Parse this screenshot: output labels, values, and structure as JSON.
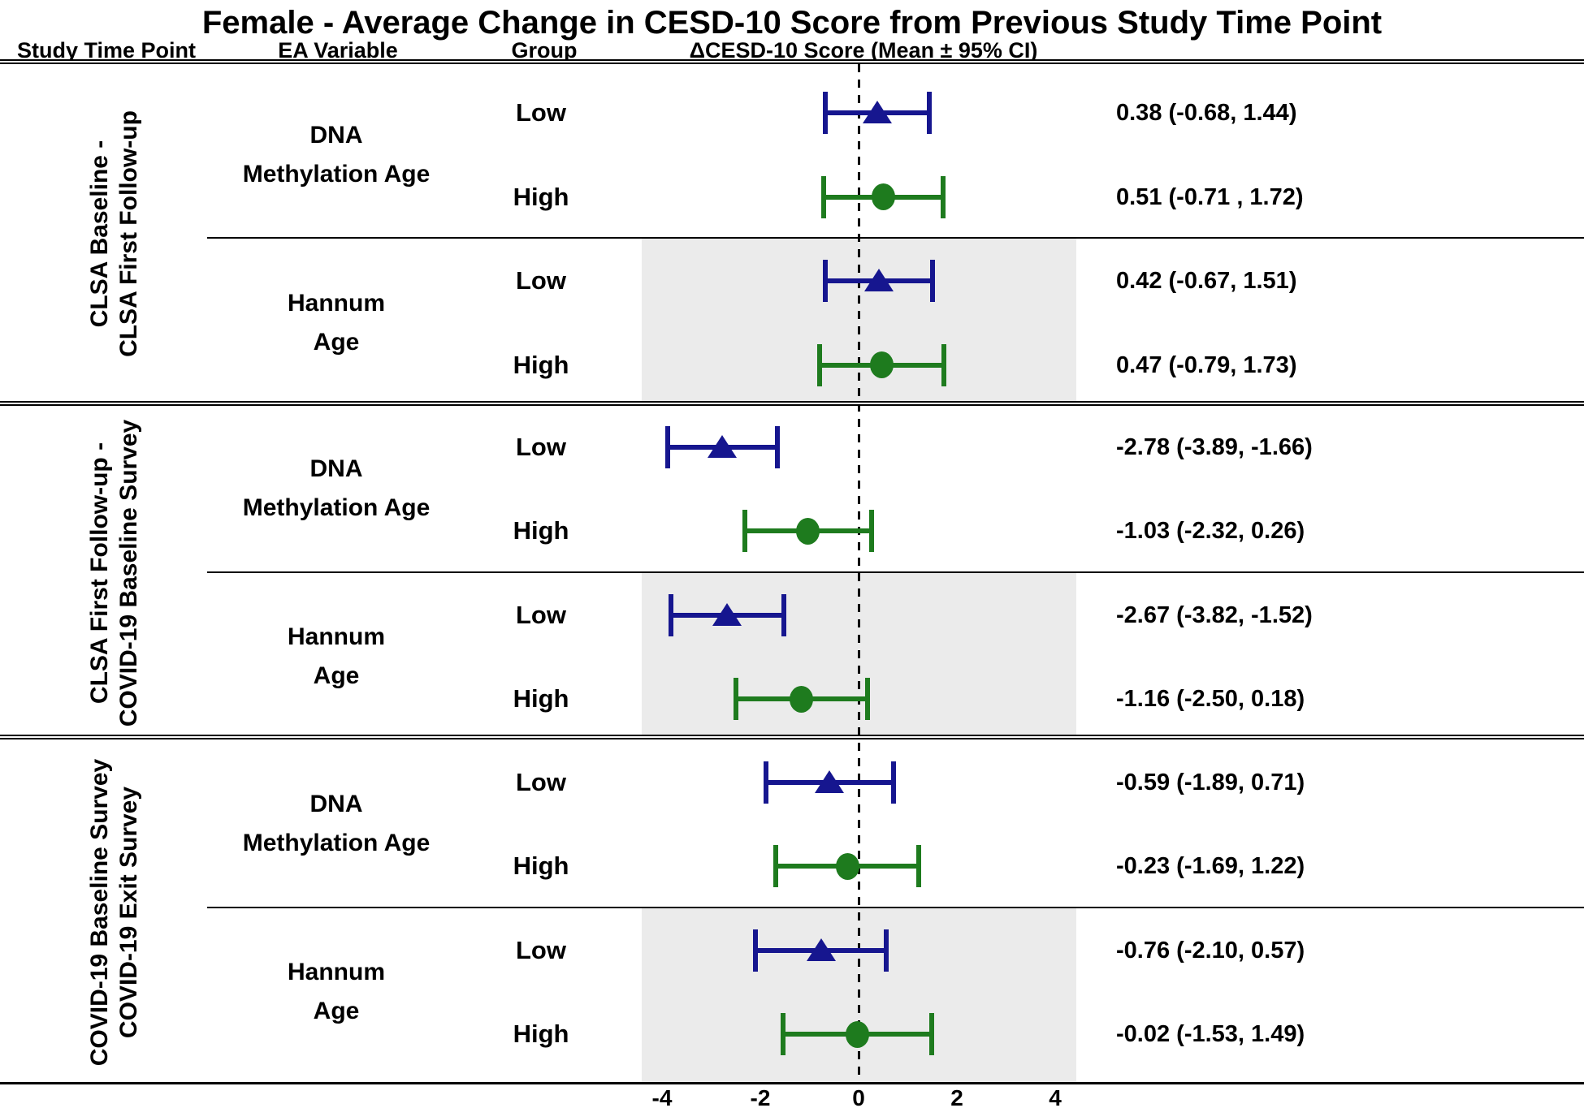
{
  "title": "Female - Average Change in CESD-10 Score from Previous Study Time Point",
  "columns": {
    "study_time_point": "Study Time Point",
    "ea_variable": "EA Variable",
    "group": "Group",
    "score": "ΔCESD-10 Score (Mean ± 95% CI)"
  },
  "colors": {
    "low_marker_blue": "#16168f",
    "high_marker_green": "#1e7b1e",
    "shaded_band_gray": "#ebebeb",
    "text_black": "#000000"
  },
  "marker_shapes": {
    "low": "triangle",
    "high": "circle"
  },
  "axis": {
    "tick_labels": [
      "-4",
      "-2",
      "0",
      "2",
      "4"
    ],
    "tick_values": [
      -4,
      -2,
      0,
      2,
      4
    ],
    "reference_line": 0,
    "xlim_shaded_band": [
      -4.4,
      4.4
    ]
  },
  "chart_data": {
    "type": "forest",
    "title": "Female - Average Change in CESD-10 Score from Previous Study Time Point",
    "xlabel": "ΔCESD-10 Score (Mean ± 95% CI)",
    "sections": [
      {
        "study_time_point_lines": [
          "CLSA Baseline -",
          "CLSA First Follow-up"
        ],
        "subgroups": [
          {
            "ea_variable_lines": [
              "DNA",
              "Methylation Age"
            ],
            "shaded": false,
            "rows": [
              {
                "group": "Low",
                "mean": 0.38,
                "lo": -0.68,
                "hi": 1.44,
                "label": "0.38 (-0.68, 1.44)"
              },
              {
                "group": "High",
                "mean": 0.51,
                "lo": -0.71,
                "hi": 1.72,
                "label": "0.51 (-0.71 , 1.72)"
              }
            ]
          },
          {
            "ea_variable_lines": [
              "Hannum",
              "Age"
            ],
            "shaded": true,
            "rows": [
              {
                "group": "Low",
                "mean": 0.42,
                "lo": -0.67,
                "hi": 1.51,
                "label": "0.42 (-0.67, 1.51)"
              },
              {
                "group": "High",
                "mean": 0.47,
                "lo": -0.79,
                "hi": 1.73,
                "label": "0.47 (-0.79, 1.73)"
              }
            ]
          }
        ]
      },
      {
        "study_time_point_lines": [
          "CLSA First Follow-up -",
          "COVID-19 Baseline Survey"
        ],
        "subgroups": [
          {
            "ea_variable_lines": [
              "DNA",
              "Methylation Age"
            ],
            "shaded": false,
            "rows": [
              {
                "group": "Low",
                "mean": -2.78,
                "lo": -3.89,
                "hi": -1.66,
                "label": "-2.78 (-3.89, -1.66)"
              },
              {
                "group": "High",
                "mean": -1.03,
                "lo": -2.32,
                "hi": 0.26,
                "label": "-1.03 (-2.32, 0.26)"
              }
            ]
          },
          {
            "ea_variable_lines": [
              "Hannum",
              "Age"
            ],
            "shaded": true,
            "rows": [
              {
                "group": "Low",
                "mean": -2.67,
                "lo": -3.82,
                "hi": -1.52,
                "label": "-2.67 (-3.82, -1.52)"
              },
              {
                "group": "High",
                "mean": -1.16,
                "lo": -2.5,
                "hi": 0.18,
                "label": "-1.16 (-2.50, 0.18)"
              }
            ]
          }
        ]
      },
      {
        "study_time_point_lines": [
          "COVID-19 Baseline Survey",
          "COVID-19 Exit Survey"
        ],
        "subgroups": [
          {
            "ea_variable_lines": [
              "DNA",
              "Methylation Age"
            ],
            "shaded": false,
            "rows": [
              {
                "group": "Low",
                "mean": -0.59,
                "lo": -1.89,
                "hi": 0.71,
                "label": "-0.59 (-1.89, 0.71)"
              },
              {
                "group": "High",
                "mean": -0.23,
                "lo": -1.69,
                "hi": 1.22,
                "label": "-0.23 (-1.69, 1.22)"
              }
            ]
          },
          {
            "ea_variable_lines": [
              "Hannum",
              "Age"
            ],
            "shaded": true,
            "rows": [
              {
                "group": "Low",
                "mean": -0.76,
                "lo": -2.1,
                "hi": 0.57,
                "label": "-0.76 (-2.10, 0.57)"
              },
              {
                "group": "High",
                "mean": -0.02,
                "lo": -1.53,
                "hi": 1.49,
                "label": "-0.02 (-1.53, 1.49)"
              }
            ]
          }
        ]
      }
    ]
  }
}
